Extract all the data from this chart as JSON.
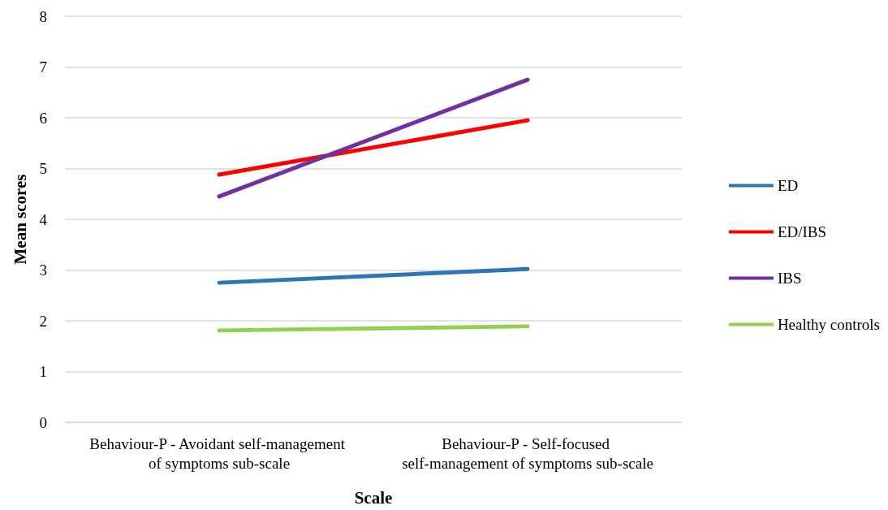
{
  "chart_data": {
    "type": "line",
    "xlabel": "Scale",
    "ylabel": "Mean scores",
    "categories": [
      "Behaviour-P - Avoidant self-management of symptoms sub-scale",
      "Behaviour-P - Self-focused self-management of symptoms sub-scale"
    ],
    "series": [
      {
        "name": "ED",
        "color": "#2e75b6",
        "values": [
          2.75,
          3.02
        ]
      },
      {
        "name": "ED/IBS",
        "color": "#ff0000",
        "values": [
          4.88,
          5.95
        ]
      },
      {
        "name": "IBS",
        "color": "#7030a0",
        "values": [
          4.45,
          6.75
        ]
      },
      {
        "name": "Healthy controls",
        "color": "#92d050",
        "values": [
          1.81,
          1.89
        ]
      }
    ],
    "ylim": [
      0,
      8
    ],
    "yticks": [
      0,
      1,
      2,
      3,
      4,
      5,
      6,
      7,
      8
    ],
    "grid": "y",
    "legend": "right",
    "marker": "none",
    "line_style": "solid"
  }
}
